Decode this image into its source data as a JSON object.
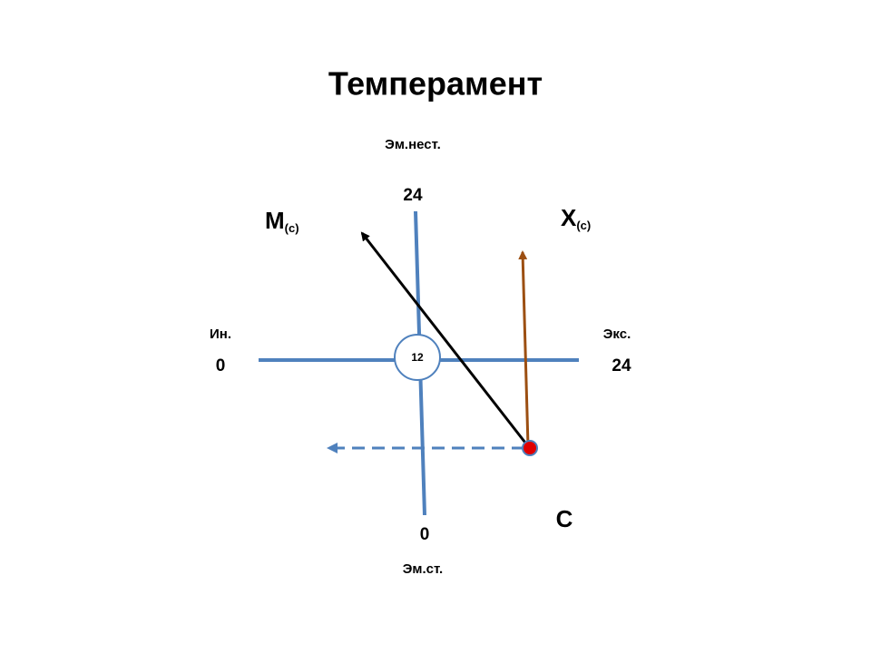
{
  "title": "Темперамент",
  "axes": {
    "top": {
      "label": "Эм.нест.",
      "value": 24
    },
    "bottom": {
      "label": "Эм.ст.",
      "value": 0
    },
    "left": {
      "label": "Ин.",
      "value": 0
    },
    "right": {
      "label": "Экс.",
      "value": 24
    }
  },
  "center": 12,
  "vectors": [
    {
      "label": "М",
      "subscript": "(с)"
    },
    {
      "label": "Х",
      "subscript": "(с)"
    }
  ],
  "point": {
    "label": "С"
  }
}
